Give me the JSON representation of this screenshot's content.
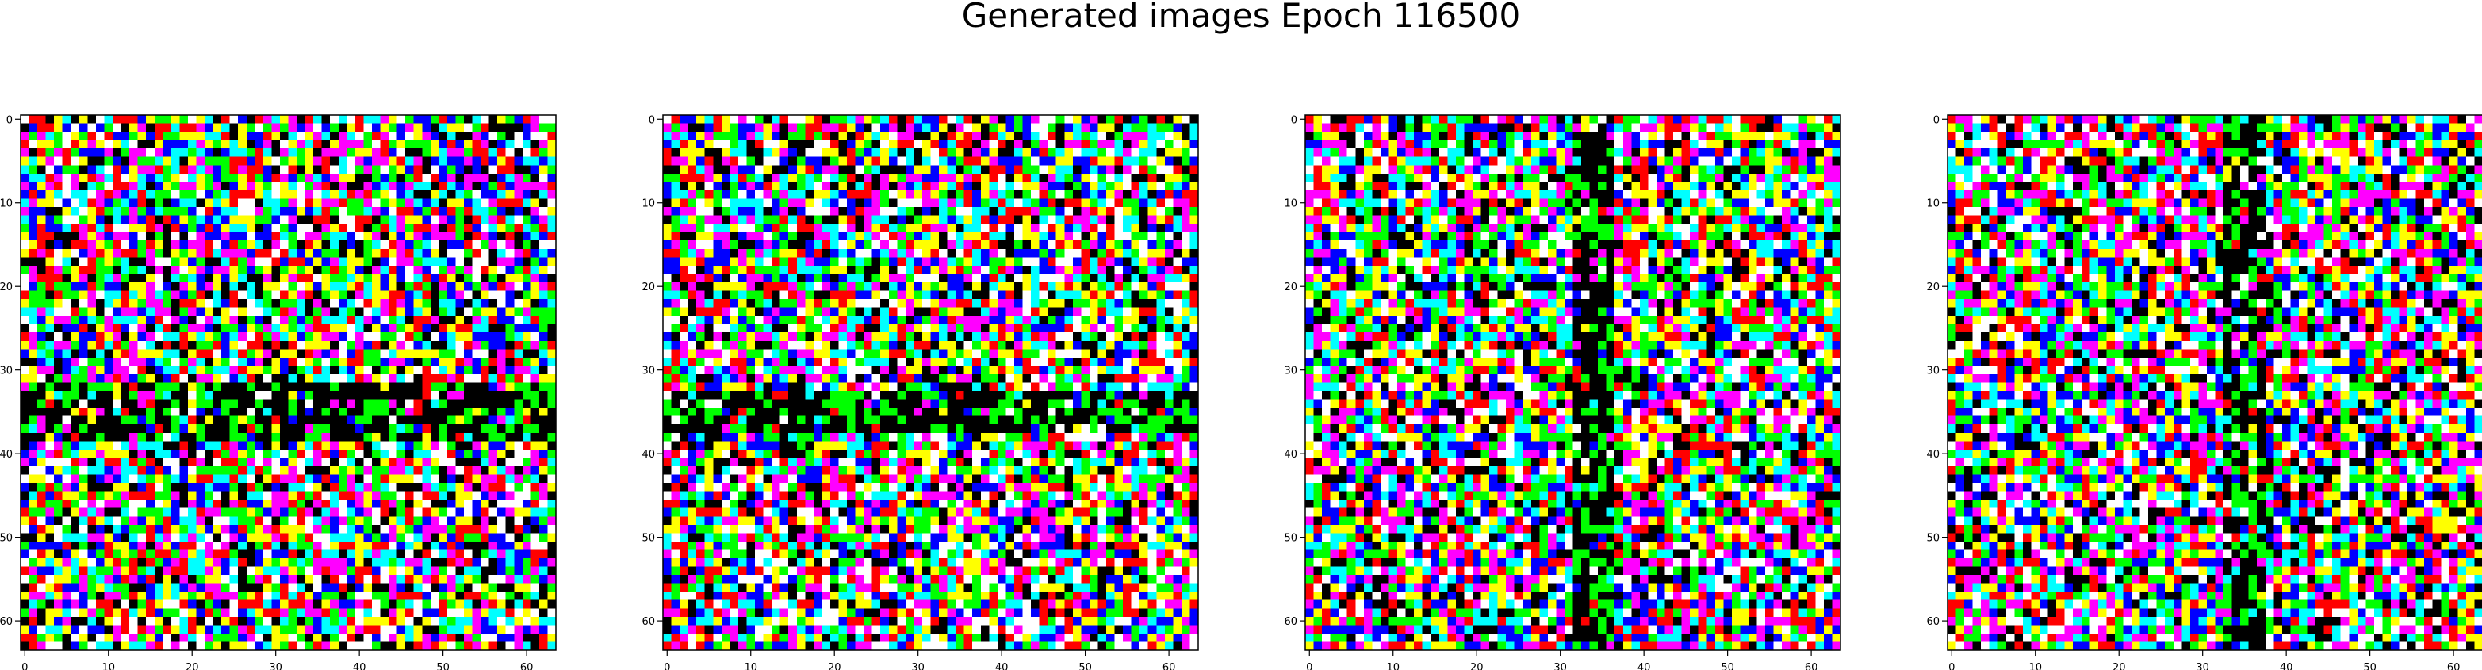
{
  "figure": {
    "title": "Generated images Epoch 116500"
  },
  "chart_data": [
    {
      "type": "heatmap",
      "grid_size": [
        64,
        64
      ],
      "xlim": [
        -0.5,
        63.5
      ],
      "ylim": [
        63.5,
        -0.5
      ],
      "xticks": [
        0,
        10,
        20,
        30,
        40,
        50,
        60
      ],
      "yticks": [
        0,
        10,
        20,
        30,
        40,
        50,
        60
      ],
      "palette": [
        "#000000",
        "#ffffff",
        "#ff0000",
        "#00ff00",
        "#0000ff",
        "#ffff00",
        "#00ffff",
        "#ff00ff"
      ],
      "dark_band": {
        "orientation": "horizontal",
        "range": [
          32,
          38
        ]
      },
      "seed": 11
    },
    {
      "type": "heatmap",
      "grid_size": [
        64,
        64
      ],
      "xlim": [
        -0.5,
        63.5
      ],
      "ylim": [
        63.5,
        -0.5
      ],
      "xticks": [
        0,
        10,
        20,
        30,
        40,
        50,
        60
      ],
      "yticks": [
        0,
        10,
        20,
        30,
        40,
        50,
        60
      ],
      "palette": [
        "#000000",
        "#ffffff",
        "#ff0000",
        "#00ff00",
        "#0000ff",
        "#ffff00",
        "#00ffff",
        "#ff00ff"
      ],
      "dark_band": {
        "orientation": "horizontal",
        "range": [
          33,
          37
        ]
      },
      "seed": 23
    },
    {
      "type": "heatmap",
      "grid_size": [
        64,
        64
      ],
      "xlim": [
        -0.5,
        63.5
      ],
      "ylim": [
        63.5,
        -0.5
      ],
      "xticks": [
        0,
        10,
        20,
        30,
        40,
        50,
        60
      ],
      "yticks": [
        0,
        10,
        20,
        30,
        40,
        50,
        60
      ],
      "palette": [
        "#000000",
        "#ffffff",
        "#ff0000",
        "#00ff00",
        "#0000ff",
        "#ffff00",
        "#00ffff",
        "#ff00ff"
      ],
      "dark_band": {
        "orientation": "vertical",
        "range": [
          32,
          36
        ]
      },
      "seed": 37
    },
    {
      "type": "heatmap",
      "grid_size": [
        64,
        64
      ],
      "xlim": [
        -0.5,
        63.5
      ],
      "ylim": [
        63.5,
        -0.5
      ],
      "xticks": [
        0,
        10,
        20,
        30,
        40,
        50,
        60
      ],
      "yticks": [
        0,
        10,
        20,
        30,
        40,
        50,
        60
      ],
      "palette": [
        "#000000",
        "#ffffff",
        "#ff0000",
        "#00ff00",
        "#0000ff",
        "#ffff00",
        "#00ffff",
        "#ff00ff"
      ],
      "dark_band": {
        "orientation": "vertical",
        "range": [
          33,
          37
        ]
      },
      "seed": 41
    }
  ]
}
